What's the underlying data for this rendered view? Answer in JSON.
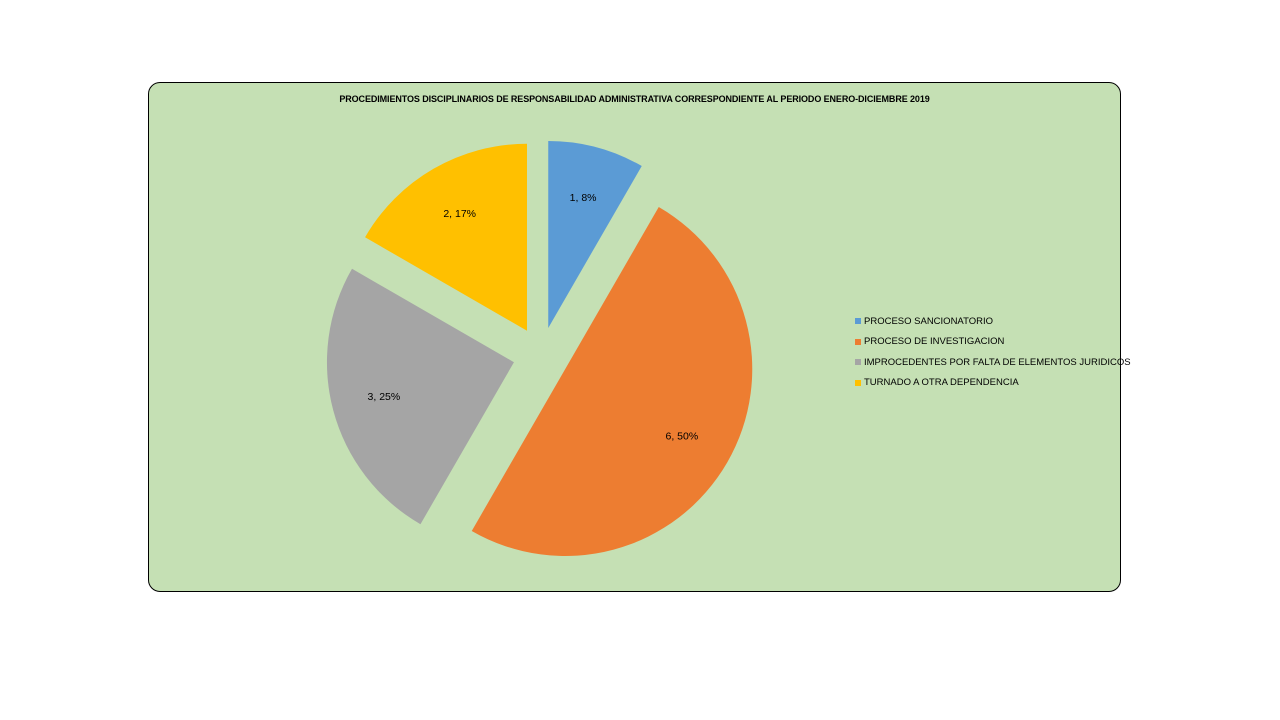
{
  "chart_data": {
    "type": "pie",
    "title": "PROCEDIMIENTOS DISCIPLINARIOS DE RESPONSABILIDAD ADMINISTRATIVA CORRESPONDIENTE AL PERIODO ENERO-DICIEMBRE 2019",
    "categories": [
      "PROCESO SANCIONATORIO",
      "PROCESO DE INVESTIGACION",
      "IMPROCEDENTES POR FALTA DE ELEMENTOS JURIDICOS",
      "TURNADO A OTRA DEPENDENCIA"
    ],
    "values": [
      1,
      6,
      3,
      2
    ],
    "data_labels": [
      "1, 8%",
      "6, 50%",
      "3, 25%",
      "2, 17%"
    ],
    "colors": [
      "#5b9bd5",
      "#ed7d31",
      "#a5a5a5",
      "#ffc000"
    ],
    "legend_position": "right",
    "exploded": true
  }
}
